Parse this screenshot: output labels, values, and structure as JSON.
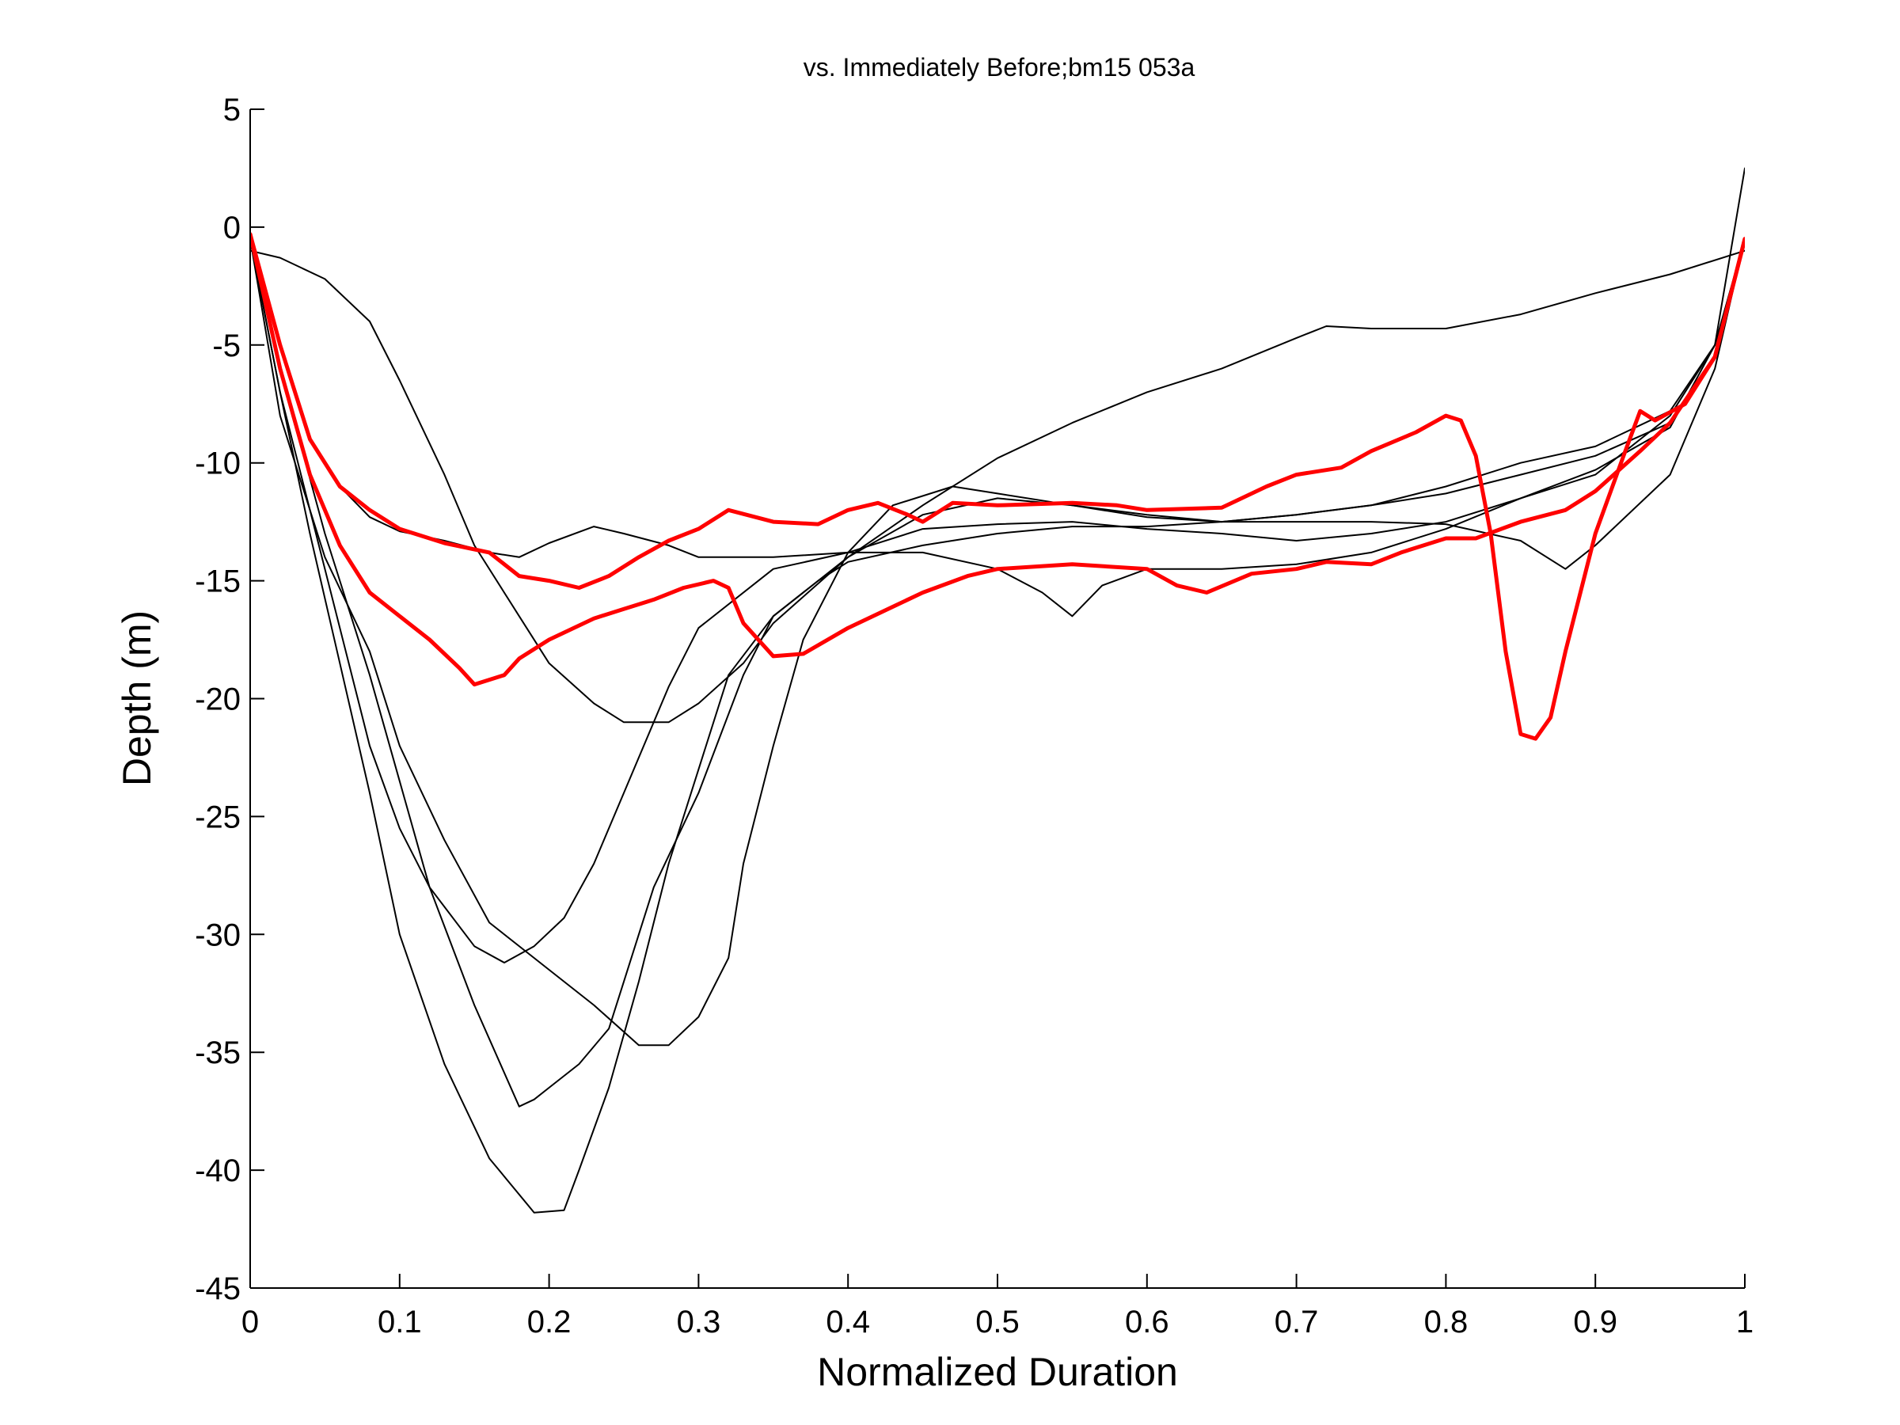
{
  "chart_data": {
    "type": "line",
    "title": "vs. Immediately Before;bm15 053a",
    "xlabel": "Normalized Duration",
    "ylabel": "Depth (m)",
    "xlim": [
      0,
      1
    ],
    "ylim": [
      -45,
      5
    ],
    "xticks": [
      "0",
      "0.1",
      "0.2",
      "0.3",
      "0.4",
      "0.5",
      "0.6",
      "0.7",
      "0.8",
      "0.9",
      "1"
    ],
    "yticks": [
      "5",
      "0",
      "-5",
      "-10",
      "-15",
      "-20",
      "-25",
      "-30",
      "-35",
      "-40",
      "-45"
    ],
    "grid": false,
    "colors": {
      "highlight": "#ff0000",
      "background": "#000000"
    },
    "series": [
      {
        "color": "#000000",
        "points": [
          [
            0,
            -1
          ],
          [
            0.02,
            -1.3
          ],
          [
            0.05,
            -2.2
          ],
          [
            0.08,
            -4
          ],
          [
            0.1,
            -6.5
          ],
          [
            0.13,
            -10.5
          ],
          [
            0.15,
            -13.5
          ],
          [
            0.18,
            -16.5
          ],
          [
            0.2,
            -18.5
          ],
          [
            0.23,
            -20.2
          ],
          [
            0.25,
            -21
          ],
          [
            0.28,
            -21
          ],
          [
            0.3,
            -20.2
          ],
          [
            0.33,
            -18.5
          ],
          [
            0.35,
            -16.8
          ],
          [
            0.4,
            -14
          ],
          [
            0.45,
            -11.8
          ],
          [
            0.5,
            -9.8
          ],
          [
            0.55,
            -8.3
          ],
          [
            0.6,
            -7
          ],
          [
            0.65,
            -6
          ],
          [
            0.7,
            -4.7
          ],
          [
            0.72,
            -4.2
          ],
          [
            0.75,
            -4.3
          ],
          [
            0.8,
            -4.3
          ],
          [
            0.85,
            -3.7
          ],
          [
            0.9,
            -2.8
          ],
          [
            0.95,
            -2
          ],
          [
            1,
            -1
          ]
        ]
      },
      {
        "color": "#000000",
        "points": [
          [
            0,
            -0.5
          ],
          [
            0.02,
            -5
          ],
          [
            0.04,
            -9
          ],
          [
            0.06,
            -11
          ],
          [
            0.08,
            -12.3
          ],
          [
            0.1,
            -12.9
          ],
          [
            0.13,
            -13.3
          ],
          [
            0.16,
            -13.8
          ],
          [
            0.18,
            -14
          ],
          [
            0.2,
            -13.4
          ],
          [
            0.23,
            -12.7
          ],
          [
            0.25,
            -13
          ],
          [
            0.28,
            -13.5
          ],
          [
            0.3,
            -14
          ],
          [
            0.35,
            -14
          ],
          [
            0.4,
            -13.8
          ],
          [
            0.45,
            -13.8
          ],
          [
            0.5,
            -14.5
          ],
          [
            0.53,
            -15.5
          ],
          [
            0.55,
            -16.5
          ],
          [
            0.57,
            -15.2
          ],
          [
            0.6,
            -14.5
          ],
          [
            0.65,
            -14.5
          ],
          [
            0.7,
            -14.3
          ],
          [
            0.75,
            -13.8
          ],
          [
            0.8,
            -12.8
          ],
          [
            0.85,
            -11.5
          ],
          [
            0.9,
            -10.5
          ],
          [
            0.95,
            -8
          ],
          [
            0.98,
            -5
          ],
          [
            1,
            2.5
          ]
        ]
      },
      {
        "color": "#000000",
        "points": [
          [
            0,
            -0.5
          ],
          [
            0.02,
            -7
          ],
          [
            0.04,
            -12
          ],
          [
            0.06,
            -17
          ],
          [
            0.08,
            -22
          ],
          [
            0.1,
            -25.5
          ],
          [
            0.12,
            -28
          ],
          [
            0.15,
            -30.5
          ],
          [
            0.17,
            -31.2
          ],
          [
            0.19,
            -30.5
          ],
          [
            0.21,
            -29.3
          ],
          [
            0.23,
            -27
          ],
          [
            0.25,
            -24
          ],
          [
            0.28,
            -19.5
          ],
          [
            0.3,
            -17
          ],
          [
            0.35,
            -14.5
          ],
          [
            0.4,
            -13.8
          ],
          [
            0.45,
            -12.8
          ],
          [
            0.5,
            -12.6
          ],
          [
            0.55,
            -12.5
          ],
          [
            0.6,
            -12.8
          ],
          [
            0.65,
            -13
          ],
          [
            0.7,
            -13.3
          ],
          [
            0.75,
            -13
          ],
          [
            0.8,
            -12.5
          ],
          [
            0.85,
            -11.5
          ],
          [
            0.9,
            -10.3
          ],
          [
            0.95,
            -8.5
          ],
          [
            0.98,
            -5
          ],
          [
            1,
            -0.5
          ]
        ]
      },
      {
        "color": "#000000",
        "points": [
          [
            0,
            -0.5
          ],
          [
            0.02,
            -6
          ],
          [
            0.05,
            -13
          ],
          [
            0.08,
            -19
          ],
          [
            0.1,
            -23.5
          ],
          [
            0.12,
            -28
          ],
          [
            0.15,
            -33
          ],
          [
            0.18,
            -37.3
          ],
          [
            0.19,
            -37
          ],
          [
            0.2,
            -36.5
          ],
          [
            0.22,
            -35.5
          ],
          [
            0.24,
            -34
          ],
          [
            0.25,
            -32
          ],
          [
            0.27,
            -28
          ],
          [
            0.3,
            -24
          ],
          [
            0.33,
            -19
          ],
          [
            0.35,
            -16.5
          ],
          [
            0.38,
            -15
          ],
          [
            0.4,
            -14.2
          ],
          [
            0.45,
            -13.5
          ],
          [
            0.5,
            -13
          ],
          [
            0.55,
            -12.7
          ],
          [
            0.6,
            -12.7
          ],
          [
            0.65,
            -12.5
          ],
          [
            0.7,
            -12.2
          ],
          [
            0.75,
            -11.8
          ],
          [
            0.8,
            -11.3
          ],
          [
            0.85,
            -10.5
          ],
          [
            0.9,
            -9.7
          ],
          [
            0.95,
            -8.3
          ],
          [
            0.98,
            -5.5
          ],
          [
            1,
            -0.5
          ]
        ]
      },
      {
        "color": "#000000",
        "points": [
          [
            0,
            -0.5
          ],
          [
            0.02,
            -7
          ],
          [
            0.04,
            -13
          ],
          [
            0.06,
            -18.5
          ],
          [
            0.08,
            -24
          ],
          [
            0.1,
            -30
          ],
          [
            0.13,
            -35.5
          ],
          [
            0.16,
            -39.5
          ],
          [
            0.19,
            -41.8
          ],
          [
            0.21,
            -41.7
          ],
          [
            0.22,
            -40
          ],
          [
            0.24,
            -36.5
          ],
          [
            0.26,
            -32
          ],
          [
            0.28,
            -27
          ],
          [
            0.3,
            -23
          ],
          [
            0.32,
            -19
          ],
          [
            0.35,
            -16.5
          ],
          [
            0.4,
            -14
          ],
          [
            0.45,
            -12.2
          ],
          [
            0.5,
            -11.5
          ],
          [
            0.55,
            -11.8
          ],
          [
            0.6,
            -12.3
          ],
          [
            0.65,
            -12.5
          ],
          [
            0.7,
            -12.2
          ],
          [
            0.75,
            -11.8
          ],
          [
            0.8,
            -11
          ],
          [
            0.85,
            -10
          ],
          [
            0.9,
            -9.3
          ],
          [
            0.95,
            -7.8
          ],
          [
            0.98,
            -5
          ],
          [
            1,
            -0.5
          ]
        ]
      },
      {
        "color": "#000000",
        "points": [
          [
            0,
            -0.5
          ],
          [
            0.02,
            -8
          ],
          [
            0.05,
            -14
          ],
          [
            0.08,
            -18
          ],
          [
            0.1,
            -22
          ],
          [
            0.13,
            -26
          ],
          [
            0.16,
            -29.5
          ],
          [
            0.2,
            -31.5
          ],
          [
            0.23,
            -33
          ],
          [
            0.26,
            -34.7
          ],
          [
            0.28,
            -34.7
          ],
          [
            0.3,
            -33.5
          ],
          [
            0.32,
            -31
          ],
          [
            0.33,
            -27
          ],
          [
            0.35,
            -22
          ],
          [
            0.37,
            -17.5
          ],
          [
            0.4,
            -13.8
          ],
          [
            0.43,
            -11.8
          ],
          [
            0.47,
            -11
          ],
          [
            0.5,
            -11.3
          ],
          [
            0.55,
            -11.8
          ],
          [
            0.6,
            -12.2
          ],
          [
            0.65,
            -12.5
          ],
          [
            0.7,
            -12.5
          ],
          [
            0.75,
            -12.5
          ],
          [
            0.8,
            -12.6
          ],
          [
            0.85,
            -13.3
          ],
          [
            0.88,
            -14.5
          ],
          [
            0.9,
            -13.5
          ],
          [
            0.95,
            -10.5
          ],
          [
            0.98,
            -6
          ],
          [
            1,
            -0.5
          ]
        ]
      },
      {
        "color": "#ff0000",
        "points": [
          [
            0,
            -0.3
          ],
          [
            0.02,
            -5
          ],
          [
            0.04,
            -9
          ],
          [
            0.06,
            -11
          ],
          [
            0.08,
            -12
          ],
          [
            0.1,
            -12.8
          ],
          [
            0.13,
            -13.4
          ],
          [
            0.16,
            -13.8
          ],
          [
            0.18,
            -14.8
          ],
          [
            0.2,
            -15
          ],
          [
            0.22,
            -15.3
          ],
          [
            0.24,
            -14.8
          ],
          [
            0.26,
            -14
          ],
          [
            0.28,
            -13.3
          ],
          [
            0.3,
            -12.8
          ],
          [
            0.32,
            -12
          ],
          [
            0.35,
            -12.5
          ],
          [
            0.38,
            -12.6
          ],
          [
            0.4,
            -12
          ],
          [
            0.42,
            -11.7
          ],
          [
            0.44,
            -12.2
          ],
          [
            0.45,
            -12.5
          ],
          [
            0.47,
            -11.7
          ],
          [
            0.5,
            -11.8
          ],
          [
            0.55,
            -11.7
          ],
          [
            0.58,
            -11.8
          ],
          [
            0.6,
            -12
          ],
          [
            0.65,
            -11.9
          ],
          [
            0.68,
            -11
          ],
          [
            0.7,
            -10.5
          ],
          [
            0.73,
            -10.2
          ],
          [
            0.75,
            -9.5
          ],
          [
            0.78,
            -8.7
          ],
          [
            0.8,
            -8
          ],
          [
            0.81,
            -8.2
          ],
          [
            0.82,
            -9.7
          ],
          [
            0.83,
            -13
          ],
          [
            0.84,
            -18
          ],
          [
            0.85,
            -21.5
          ],
          [
            0.86,
            -21.7
          ],
          [
            0.87,
            -20.8
          ],
          [
            0.88,
            -18
          ],
          [
            0.9,
            -13
          ],
          [
            0.92,
            -9.5
          ],
          [
            0.93,
            -7.8
          ],
          [
            0.94,
            -8.2
          ],
          [
            0.96,
            -7.5
          ],
          [
            0.98,
            -5.5
          ],
          [
            1,
            -0.5
          ]
        ]
      },
      {
        "color": "#ff0000",
        "points": [
          [
            0,
            -0.3
          ],
          [
            0.02,
            -6
          ],
          [
            0.04,
            -10.5
          ],
          [
            0.06,
            -13.5
          ],
          [
            0.08,
            -15.5
          ],
          [
            0.1,
            -16.5
          ],
          [
            0.12,
            -17.5
          ],
          [
            0.14,
            -18.7
          ],
          [
            0.15,
            -19.4
          ],
          [
            0.17,
            -19
          ],
          [
            0.18,
            -18.3
          ],
          [
            0.2,
            -17.5
          ],
          [
            0.23,
            -16.6
          ],
          [
            0.25,
            -16.2
          ],
          [
            0.27,
            -15.8
          ],
          [
            0.29,
            -15.3
          ],
          [
            0.31,
            -15
          ],
          [
            0.32,
            -15.3
          ],
          [
            0.33,
            -16.8
          ],
          [
            0.35,
            -18.2
          ],
          [
            0.37,
            -18.1
          ],
          [
            0.4,
            -17
          ],
          [
            0.45,
            -15.5
          ],
          [
            0.48,
            -14.8
          ],
          [
            0.5,
            -14.5
          ],
          [
            0.55,
            -14.3
          ],
          [
            0.6,
            -14.5
          ],
          [
            0.62,
            -15.2
          ],
          [
            0.64,
            -15.5
          ],
          [
            0.67,
            -14.7
          ],
          [
            0.7,
            -14.5
          ],
          [
            0.72,
            -14.2
          ],
          [
            0.75,
            -14.3
          ],
          [
            0.77,
            -13.8
          ],
          [
            0.8,
            -13.2
          ],
          [
            0.82,
            -13.2
          ],
          [
            0.85,
            -12.5
          ],
          [
            0.88,
            -12
          ],
          [
            0.9,
            -11.2
          ],
          [
            0.93,
            -9.5
          ],
          [
            0.95,
            -8.3
          ],
          [
            0.98,
            -5.5
          ],
          [
            1,
            -0.5
          ]
        ]
      }
    ]
  }
}
